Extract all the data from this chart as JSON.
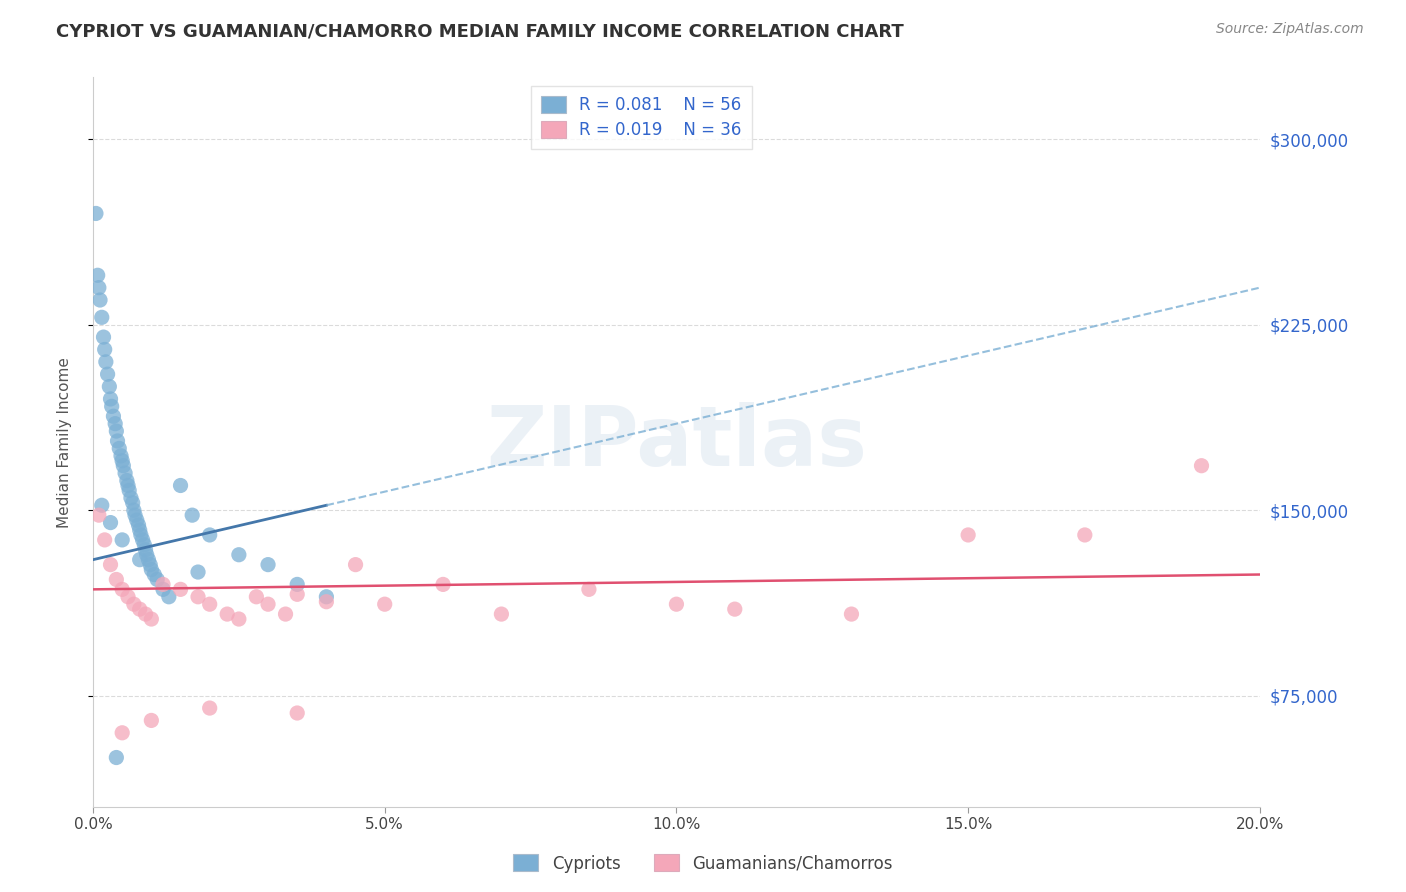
{
  "title": "CYPRIOT VS GUAMANIAN/CHAMORRO MEDIAN FAMILY INCOME CORRELATION CHART",
  "source": "Source: ZipAtlas.com",
  "ylabel": "Median Family Income",
  "y_ticks": [
    75000,
    150000,
    225000,
    300000
  ],
  "y_tick_labels": [
    "$75,000",
    "$150,000",
    "$225,000",
    "$300,000"
  ],
  "xlim": [
    0.0,
    20.0
  ],
  "ylim": [
    30000,
    325000
  ],
  "cypriot_color": "#7BAFD4",
  "guamanian_color": "#F4A7B9",
  "cypriot_R": 0.081,
  "cypriot_N": 56,
  "guamanian_R": 0.019,
  "guamanian_N": 36,
  "watermark": "ZIPatlas",
  "cypriot_x": [
    0.05,
    0.08,
    0.1,
    0.12,
    0.15,
    0.18,
    0.2,
    0.22,
    0.25,
    0.28,
    0.3,
    0.32,
    0.35,
    0.38,
    0.4,
    0.42,
    0.45,
    0.48,
    0.5,
    0.52,
    0.55,
    0.58,
    0.6,
    0.62,
    0.65,
    0.68,
    0.7,
    0.72,
    0.75,
    0.78,
    0.8,
    0.82,
    0.85,
    0.88,
    0.9,
    0.92,
    0.95,
    0.98,
    1.0,
    1.05,
    1.1,
    1.2,
    1.3,
    1.5,
    1.7,
    2.0,
    2.5,
    3.0,
    3.5,
    4.0,
    0.15,
    0.3,
    0.5,
    0.8,
    1.8,
    0.4
  ],
  "cypriot_y": [
    270000,
    245000,
    240000,
    235000,
    228000,
    220000,
    215000,
    210000,
    205000,
    200000,
    195000,
    192000,
    188000,
    185000,
    182000,
    178000,
    175000,
    172000,
    170000,
    168000,
    165000,
    162000,
    160000,
    158000,
    155000,
    153000,
    150000,
    148000,
    146000,
    144000,
    142000,
    140000,
    138000,
    136000,
    134000,
    132000,
    130000,
    128000,
    126000,
    124000,
    122000,
    118000,
    115000,
    160000,
    148000,
    140000,
    132000,
    128000,
    120000,
    115000,
    152000,
    145000,
    138000,
    130000,
    125000,
    50000
  ],
  "guamanian_x": [
    0.1,
    0.2,
    0.3,
    0.4,
    0.5,
    0.6,
    0.7,
    0.8,
    0.9,
    1.0,
    1.2,
    1.5,
    1.8,
    2.0,
    2.3,
    2.5,
    2.8,
    3.0,
    3.3,
    3.5,
    4.0,
    4.5,
    5.0,
    6.0,
    7.0,
    8.5,
    10.0,
    11.0,
    13.0,
    15.0,
    17.0,
    19.0,
    0.5,
    1.0,
    2.0,
    3.5
  ],
  "guamanian_y": [
    148000,
    138000,
    128000,
    122000,
    118000,
    115000,
    112000,
    110000,
    108000,
    106000,
    120000,
    118000,
    115000,
    112000,
    108000,
    106000,
    115000,
    112000,
    108000,
    116000,
    113000,
    128000,
    112000,
    120000,
    108000,
    118000,
    112000,
    110000,
    108000,
    140000,
    140000,
    168000,
    60000,
    65000,
    70000,
    68000
  ],
  "cyp_reg_x0": 0,
  "cyp_reg_x1": 20,
  "cyp_reg_y0": 130000,
  "cyp_reg_y1": 240000,
  "cyp_solid_x1": 4.0,
  "gua_reg_x0": 0,
  "gua_reg_x1": 20,
  "gua_reg_y0": 118000,
  "gua_reg_y1": 124000
}
